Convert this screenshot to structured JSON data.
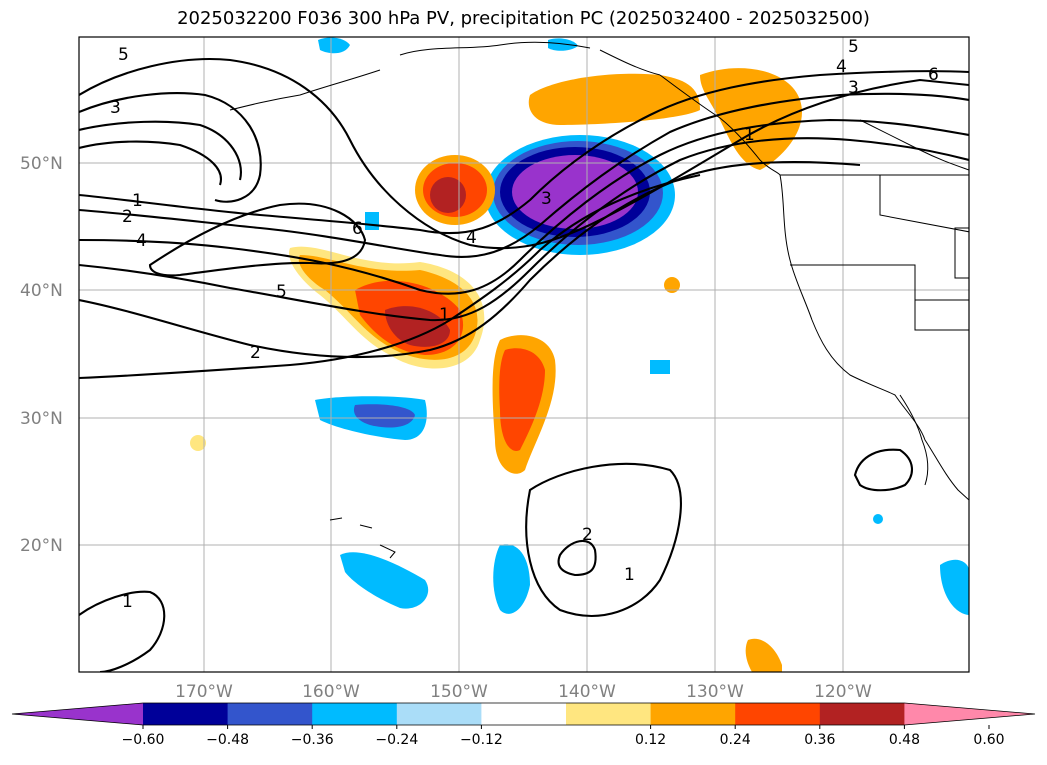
{
  "title": "2025032200 F036 300 hPa PV, precipitation PC (2025032400 - 2025032500)",
  "lat_labels": [
    "50°N",
    "40°N",
    "30°N",
    "20°N"
  ],
  "lon_labels": [
    "170°W",
    "160°W",
    "150°W",
    "140°W",
    "130°W",
    "120°W"
  ],
  "colorbar": {
    "tick_labels": [
      "−0.60",
      "−0.48",
      "−0.36",
      "−0.24",
      "−0.12",
      "0.12",
      "0.24",
      "0.36",
      "0.48",
      "0.60"
    ],
    "colors": [
      "#9933cc",
      "#000099",
      "#3355cc",
      "#00bbff",
      "#aaddf8",
      "#ffffff",
      "#ffe680",
      "#ffa500",
      "#ff4500",
      "#b22222",
      "#ff88aa"
    ]
  },
  "contour_labels": [
    "5",
    "3",
    "1",
    "2",
    "4",
    "6",
    "5",
    "2",
    "3",
    "4",
    "1",
    "5",
    "4",
    "3",
    "6",
    "1",
    "2",
    "1",
    "1"
  ]
}
